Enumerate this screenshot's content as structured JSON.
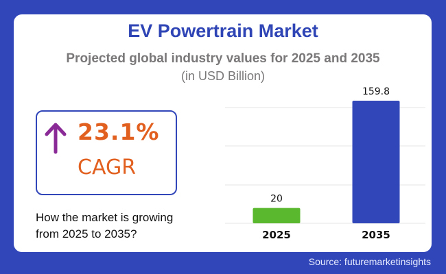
{
  "header": {
    "title": "EV Powertrain Market",
    "subtitle": "Projected global industry values for 2025 and 2035",
    "unit": "(in USD Billion)"
  },
  "kpi": {
    "icon": "arrow-up-icon",
    "value": "23.1%",
    "label": "CAGR",
    "question": "How the market is growing from 2025 to 2035?"
  },
  "footer": {
    "source": "Source: futuremarketinsights"
  },
  "colors": {
    "background": "#3146b9",
    "title": "#2f45b5",
    "accent_orange": "#e2601f",
    "arrow_purple": "#8a2a96",
    "bar_2025": "#5ab82e",
    "bar_2035": "#3146b9"
  },
  "chart_data": {
    "type": "bar",
    "title": "EV Powertrain Market",
    "subtitle": "Projected global industry values for 2025 and 2035",
    "xlabel": "",
    "ylabel": "USD Billion",
    "categories": [
      "2025",
      "2035"
    ],
    "values": [
      20,
      159.8
    ],
    "data_labels": [
      "20",
      "159.8"
    ],
    "bar_colors": [
      "#5ab82e",
      "#3146b9"
    ],
    "ylim": [
      0,
      170
    ],
    "grid": true,
    "legend": "none"
  }
}
